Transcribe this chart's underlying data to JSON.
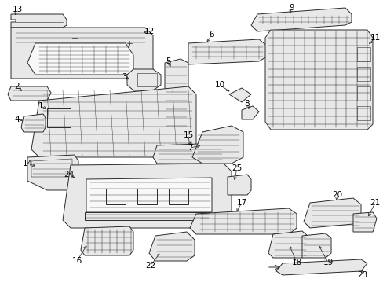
{
  "bg_color": "#ffffff",
  "line_color": "#2a2a2a",
  "fill_light": "#e8e8e8",
  "fill_white": "#f8f8f8",
  "label_fontsize": 7.5,
  "fig_width": 4.89,
  "fig_height": 3.6,
  "dpi": 100
}
